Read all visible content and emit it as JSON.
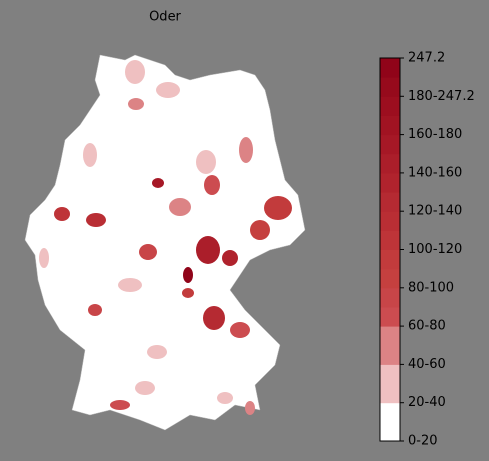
{
  "title": "Oder",
  "colorbar": {
    "labels": [
      "0-20",
      "20-40",
      "40-60",
      "60-80",
      "80-100",
      "100-120",
      "120-140",
      "140-160",
      "160-180",
      "180-247.2",
      "247.2"
    ],
    "colors": [
      "#ffffff",
      "#efc0c1",
      "#dc8385",
      "#cc4c50",
      "#c84548",
      "#c5403f",
      "#c23b3c",
      "#be3438",
      "#b92e34",
      "#b52a32",
      "#b0232d",
      "#ab1e2a",
      "#a61826",
      "#a11322",
      "#9c0e1f",
      "#960a1c",
      "#900419"
    ]
  }
}
